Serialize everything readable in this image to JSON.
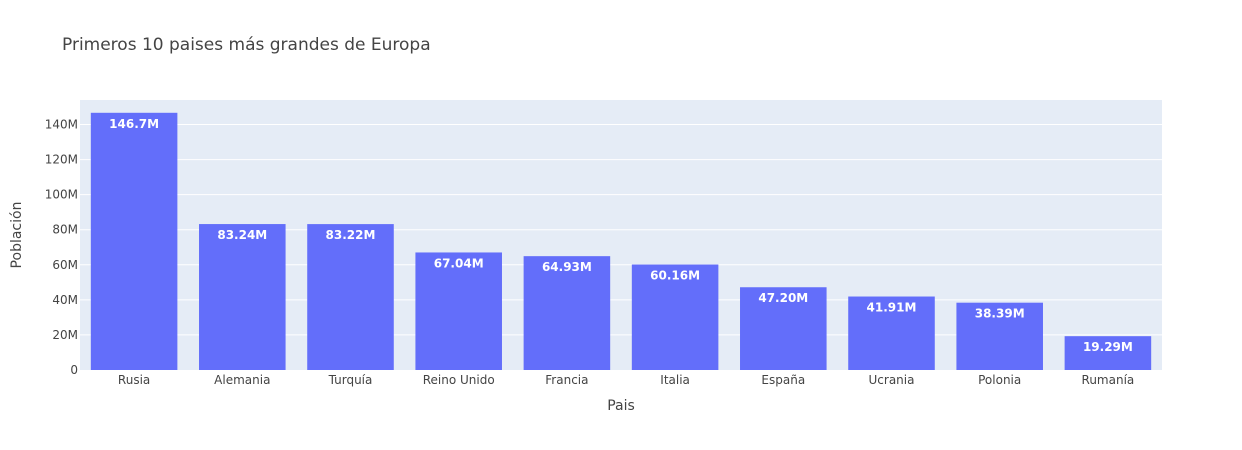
{
  "chart_data": {
    "type": "bar",
    "title": "Primeros 10 paises más grandes de Europa",
    "xlabel": "Pais",
    "ylabel": "Población",
    "categories": [
      "Rusia",
      "Alemania",
      "Turquía",
      "Reino Unido",
      "Francia",
      "Italia",
      "España",
      "Ucrania",
      "Polonia",
      "Rumanía"
    ],
    "values": [
      146700000,
      83240000,
      83220000,
      67040000,
      64930000,
      60160000,
      47200000,
      41910000,
      38390000,
      19290000
    ],
    "value_labels": [
      "146.7M",
      "83.24M",
      "83.22M",
      "67.04M",
      "64.93M",
      "60.16M",
      "47.20M",
      "41.91M",
      "38.39M",
      "19.29M"
    ],
    "ylim": [
      0,
      154000000
    ],
    "y_ticks": [
      0,
      20000000,
      40000000,
      60000000,
      80000000,
      100000000,
      120000000,
      140000000
    ],
    "y_tick_labels": [
      "0",
      "20M",
      "40M",
      "60M",
      "80M",
      "100M",
      "120M",
      "140M"
    ],
    "grid": true,
    "colors": {
      "bar": "#636efa",
      "plot_bg": "#e5ecf6",
      "grid": "#ffffff",
      "text": "#444444",
      "bar_label": "#ffffff"
    }
  }
}
